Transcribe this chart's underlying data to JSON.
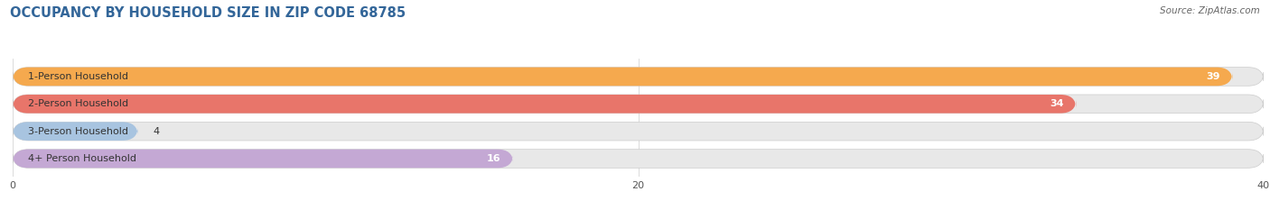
{
  "title": "OCCUPANCY BY HOUSEHOLD SIZE IN ZIP CODE 68785",
  "source": "Source: ZipAtlas.com",
  "categories": [
    "1-Person Household",
    "2-Person Household",
    "3-Person Household",
    "4+ Person Household"
  ],
  "values": [
    39,
    34,
    4,
    16
  ],
  "bar_colors": [
    "#F5A94E",
    "#E8756A",
    "#A8C4E0",
    "#C4A8D4"
  ],
  "bar_bg_color": "#E8E8E8",
  "xlim": [
    0,
    40
  ],
  "xticks": [
    0,
    20,
    40
  ],
  "title_color": "#336699",
  "title_fontsize": 10.5,
  "label_fontsize": 8,
  "value_fontsize": 8,
  "source_fontsize": 7.5,
  "source_color": "#666666",
  "bar_height": 0.68,
  "figsize": [
    14.06,
    2.33
  ],
  "dpi": 100,
  "bg_color": "#FFFFFF"
}
